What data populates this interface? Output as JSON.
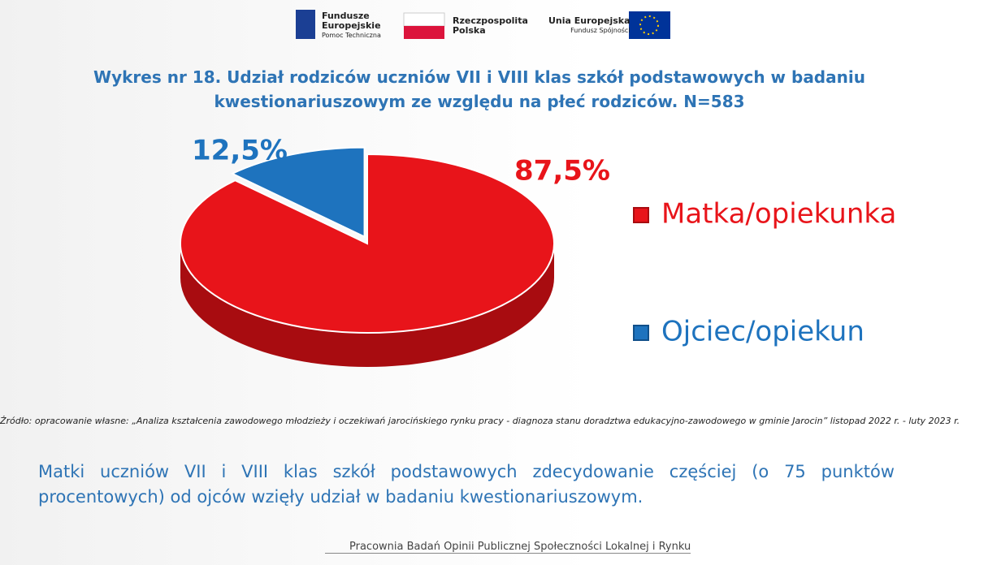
{
  "logos": {
    "fe_line1": "Fundusze",
    "fe_line2": "Europejskie",
    "fe_line3": "Pomoc Techniczna",
    "pl_line1": "Rzeczpospolita",
    "pl_line2": "Polska",
    "eu_line1": "Unia Europejska",
    "eu_line2": "Fundusz Spójności"
  },
  "chart_data": {
    "type": "pie",
    "title": "Wykres nr 18. Udział rodziców uczniów VII i VIII klas szkół podstawowych w badaniu kwestionariuszowym ze względu na płeć rodziców. N=583",
    "categories": [
      "Matka/opiekunka",
      "Ojciec/opiekun"
    ],
    "values": [
      87.5,
      12.5
    ],
    "value_labels": [
      "87,5%",
      "12,5%"
    ],
    "colors": [
      "#e8141a",
      "#1e73be"
    ]
  },
  "source": "Źródło: opracowanie własne: „Analiza kształcenia zawodowego młodzieży i oczekiwań jarocińskiego rynku pracy - diagnoza stanu doradztwa edukacyjno-zawodowego w gminie Jarocin” listopad 2022 r. - luty 2023 r.",
  "summary": "Matki uczniów VII i VIII klas szkół podstawowych zdecydowanie częściej (o 75 punktów procentowych) od ojców wzięły udział w badaniu kwestionariuszowym.",
  "footer": "Pracownia Badań Opinii Publicznej Społeczności Lokalnej i Rynku"
}
